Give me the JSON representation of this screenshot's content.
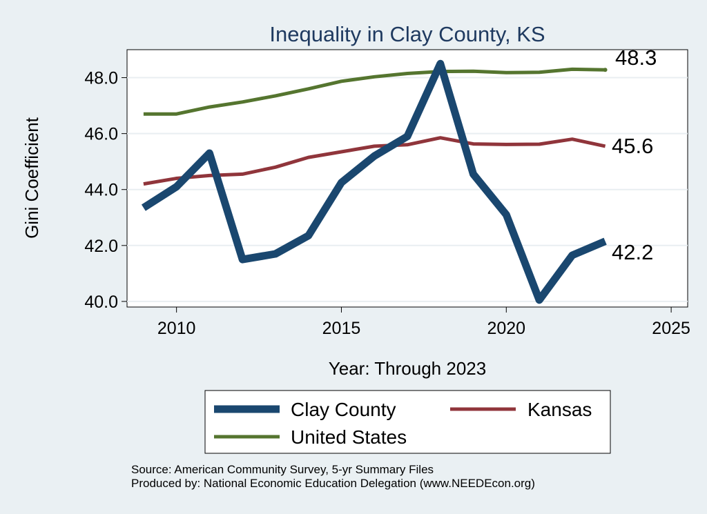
{
  "chart_data": {
    "type": "line",
    "title": "Inequality in Clay County, KS",
    "xlabel": "Year: Through 2023",
    "ylabel": "Gini Coefficient",
    "xlim": [
      2008.5,
      2025.5
    ],
    "ylim": [
      39.8,
      49.0
    ],
    "xticks": [
      2010,
      2015,
      2020,
      2025
    ],
    "yticks": [
      40.0,
      42.0,
      44.0,
      46.0,
      48.0
    ],
    "grid": true,
    "legend_position": "bottom",
    "x": [
      2009,
      2010,
      2011,
      2012,
      2013,
      2014,
      2015,
      2016,
      2017,
      2018,
      2019,
      2020,
      2021,
      2022,
      2023
    ],
    "series": [
      {
        "name": "Clay County",
        "color": "#1a476f",
        "end_label": "42.2",
        "values": [
          43.35,
          44.1,
          45.3,
          41.5,
          41.7,
          42.35,
          44.25,
          45.2,
          45.9,
          48.5,
          44.55,
          43.1,
          40.05,
          41.65,
          42.15
        ]
      },
      {
        "name": "Kansas",
        "color": "#90353b",
        "end_label": "45.6",
        "values": [
          44.2,
          44.4,
          44.5,
          44.55,
          44.8,
          45.15,
          45.35,
          45.55,
          45.6,
          45.85,
          45.63,
          45.61,
          45.62,
          45.8,
          45.55
        ]
      },
      {
        "name": "United States",
        "color": "#55752f",
        "end_label": "48.3",
        "values": [
          46.7,
          46.7,
          46.95,
          47.13,
          47.35,
          47.6,
          47.87,
          48.03,
          48.15,
          48.22,
          48.23,
          48.18,
          48.19,
          48.3,
          48.28
        ]
      }
    ]
  },
  "source_lines": [
    "Source: American Community Survey, 5-yr Summary Files",
    "Produced by: National Economic Education Delegation (www.NEEDEcon.org)"
  ]
}
